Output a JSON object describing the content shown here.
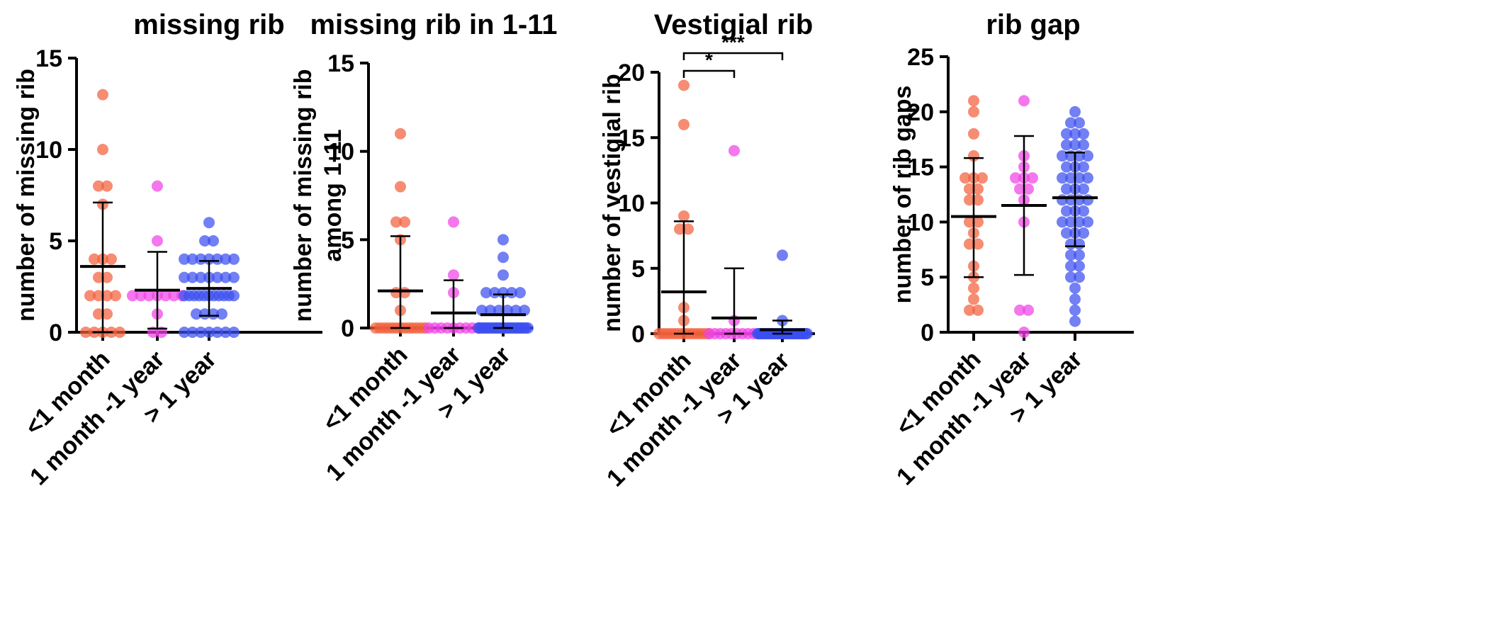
{
  "colors": {
    "lt_1_month": "#f2603c",
    "one_month_1_year": "#f043e6",
    "gt_1_year": "#3b4ff0"
  },
  "chart_data": [
    {
      "type": "scatter",
      "title": "missing rib",
      "ylabel": [
        "number of missing rib"
      ],
      "categories": [
        "<1 month",
        "1 month -1 year",
        "> 1 year"
      ],
      "ylim": [
        0,
        15
      ],
      "yticks": [
        "0",
        "5",
        "10",
        "15"
      ],
      "series": [
        {
          "category": "<1 month",
          "values": [
            13,
            10,
            8,
            8,
            7,
            4,
            4,
            4,
            3,
            3,
            2,
            2,
            2,
            2,
            1,
            1,
            0,
            0,
            0,
            0,
            0
          ],
          "mean": 3.6,
          "sd_low": 0,
          "sd_high": 7.1
        },
        {
          "category": "1 month -1 year",
          "values": [
            8,
            5,
            2,
            2,
            2,
            2,
            2,
            2,
            2,
            1,
            0,
            0
          ],
          "mean": 2.3,
          "sd_low": 0.2,
          "sd_high": 4.4
        },
        {
          "category": "> 1 year",
          "values": [
            6,
            5,
            5,
            4,
            4,
            4,
            4,
            4,
            4,
            4,
            3,
            3,
            3,
            3,
            3,
            3,
            3,
            2,
            2,
            2,
            2,
            2,
            2,
            2,
            2,
            2,
            2,
            2,
            1,
            1,
            1,
            1,
            0,
            0,
            0,
            0,
            0,
            0,
            0
          ],
          "mean": 2.4,
          "sd_low": 0.9,
          "sd_high": 3.9
        }
      ],
      "significance": []
    },
    {
      "type": "scatter",
      "title": "missing rib in 1-11",
      "ylabel": [
        "number of missing rib",
        "among 1-11"
      ],
      "categories": [
        "<1 month",
        "1 month -1 year",
        "> 1 year"
      ],
      "ylim": [
        0,
        15
      ],
      "yticks": [
        "0",
        "5",
        "10",
        "15"
      ],
      "series": [
        {
          "category": "<1 month",
          "values": [
            11,
            8,
            6,
            6,
            5,
            2,
            2,
            1,
            0,
            0,
            0,
            0,
            0,
            0,
            0,
            0,
            0,
            0,
            0,
            0,
            0
          ],
          "mean": 2.1,
          "sd_low": 0,
          "sd_high": 5.2
        },
        {
          "category": "1 month -1 year",
          "values": [
            6,
            3,
            2,
            0,
            0,
            0,
            0,
            0,
            0,
            0,
            0,
            0
          ],
          "mean": 0.85,
          "sd_low": 0,
          "sd_high": 2.7
        },
        {
          "category": "> 1 year",
          "values": [
            5,
            4,
            3,
            2,
            2,
            2,
            2,
            2,
            1,
            1,
            1,
            1,
            1,
            1,
            0,
            0,
            0,
            0,
            0,
            0,
            0,
            0,
            0,
            0,
            0,
            0,
            0,
            0,
            0,
            0,
            0,
            0,
            0,
            0,
            0,
            0,
            0,
            0,
            0
          ],
          "mean": 0.75,
          "sd_low": 0,
          "sd_high": 1.9
        }
      ],
      "significance": []
    },
    {
      "type": "scatter",
      "title": "Vestigial rib",
      "ylabel": [
        "number of vestigial rib"
      ],
      "categories": [
        "<1 month",
        "1 month -1 year",
        "> 1 year"
      ],
      "ylim": [
        0,
        20
      ],
      "yticks": [
        "0",
        "5",
        "10",
        "15",
        "20"
      ],
      "series": [
        {
          "category": "<1 month",
          "values": [
            19,
            16,
            9,
            8,
            8,
            2,
            1,
            0,
            0,
            0,
            0,
            0,
            0,
            0,
            0,
            0,
            0,
            0,
            0,
            0,
            0
          ],
          "mean": 3.2,
          "sd_low": 0,
          "sd_high": 8.6
        },
        {
          "category": "1 month -1 year",
          "values": [
            14,
            1,
            0,
            0,
            0,
            0,
            0,
            0,
            0,
            0,
            0,
            0
          ],
          "mean": 1.2,
          "sd_low": 0,
          "sd_high": 5.0
        },
        {
          "category": "> 1 year",
          "values": [
            6,
            1,
            0,
            0,
            0,
            0,
            0,
            0,
            0,
            0,
            0,
            0,
            0,
            0,
            0,
            0,
            0,
            0,
            0,
            0,
            0,
            0,
            0,
            0,
            0,
            0,
            0,
            0,
            0,
            0,
            0,
            0,
            0,
            0,
            0,
            0,
            0,
            0,
            0
          ],
          "mean": 0.3,
          "sd_low": 0,
          "sd_high": 1.0
        }
      ],
      "significance": [
        {
          "from": "<1 month",
          "to": "1 month -1 year",
          "label": "*"
        },
        {
          "from": "<1 month",
          "to": "> 1 year",
          "label": "***"
        }
      ]
    },
    {
      "type": "scatter",
      "title": "rib gap",
      "ylabel": [
        "number of rib gaps"
      ],
      "categories": [
        "<1 month",
        "1 month -1 year",
        "> 1 year"
      ],
      "ylim": [
        0,
        25
      ],
      "yticks": [
        "0",
        "5",
        "10",
        "15",
        "20",
        "25"
      ],
      "series": [
        {
          "category": "<1 month",
          "values": [
            21,
            20,
            18,
            16,
            14,
            14,
            14,
            13,
            13,
            12,
            12,
            10,
            10,
            9,
            8,
            8,
            6,
            5,
            4,
            3,
            2,
            2
          ],
          "mean": 10.5,
          "sd_low": 5.0,
          "sd_high": 15.8
        },
        {
          "category": "1 month -1 year",
          "values": [
            21,
            16,
            15,
            14,
            14,
            14,
            13,
            13,
            12,
            10,
            2,
            2,
            0
          ],
          "mean": 11.5,
          "sd_low": 5.2,
          "sd_high": 17.8
        },
        {
          "category": "> 1 year",
          "values": [
            20,
            19,
            19,
            18,
            18,
            18,
            17,
            17,
            17,
            16,
            16,
            16,
            16,
            15,
            15,
            15,
            14,
            14,
            14,
            14,
            13,
            13,
            13,
            12,
            12,
            12,
            12,
            11,
            11,
            11,
            10,
            10,
            10,
            10,
            9,
            9,
            9,
            8,
            8,
            7,
            7,
            6,
            6,
            5,
            5,
            4,
            3,
            2,
            1
          ],
          "mean": 12.2,
          "sd_low": 7.8,
          "sd_high": 16.3
        }
      ],
      "significance": []
    }
  ]
}
